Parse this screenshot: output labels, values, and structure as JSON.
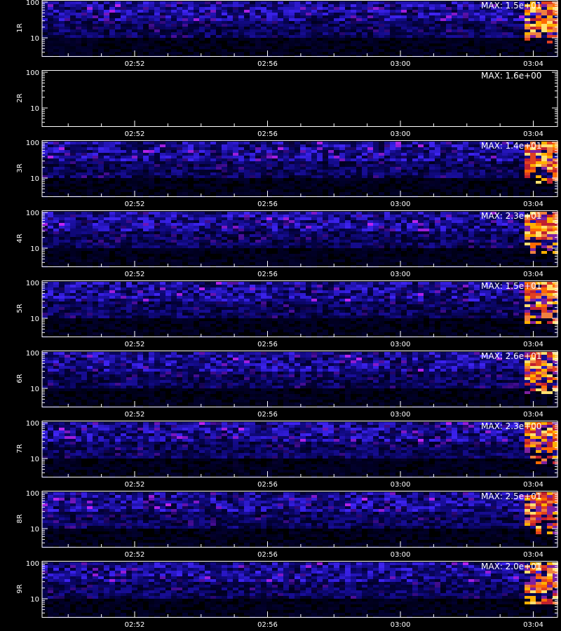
{
  "panels": [
    {
      "label": "1R",
      "max": "MAX: 1.5e+01",
      "yticks": [
        "100",
        "10"
      ],
      "xticks": [
        "02:52",
        "02:56",
        "03:00",
        "03:04"
      ]
    },
    {
      "label": "2R",
      "max": "MAX: 1.6e+00",
      "yticks": [
        "100",
        "10"
      ],
      "xticks": [
        "02:52",
        "02:56",
        "03:00",
        "03:04"
      ]
    },
    {
      "label": "3R",
      "max": "MAX: 1.4e+01",
      "yticks": [
        "100",
        "10"
      ],
      "xticks": [
        "02:52",
        "02:56",
        "03:00",
        "03:04"
      ]
    },
    {
      "label": "4R",
      "max": "MAX: 2.3e+01",
      "yticks": [
        "100",
        "10"
      ],
      "xticks": [
        "02:52",
        "02:56",
        "03:00",
        "03:04"
      ]
    },
    {
      "label": "5R",
      "max": "MAX: 1.5e+01",
      "yticks": [
        "100",
        "10"
      ],
      "xticks": [
        "02:52",
        "02:56",
        "03:00",
        "03:04"
      ]
    },
    {
      "label": "6R",
      "max": "MAX: 2.6e+01",
      "yticks": [
        "100",
        "10"
      ],
      "xticks": [
        "02:52",
        "02:56",
        "03:00",
        "03:04"
      ]
    },
    {
      "label": "7R",
      "max": "MAX: 2.3e+00",
      "yticks": [
        "100",
        "10"
      ],
      "xticks": [
        "02:52",
        "02:56",
        "03:00",
        "03:04"
      ]
    },
    {
      "label": "8R",
      "max": "MAX: 2.5e+01",
      "yticks": [
        "100",
        "10"
      ],
      "xticks": [
        "02:52",
        "02:56",
        "03:00",
        "03:04"
      ]
    },
    {
      "label": "9R",
      "max": "MAX: 2.0e+01",
      "yticks": [
        "100",
        "10"
      ],
      "xticks": [
        "02:52",
        "02:56",
        "03:00",
        "03:04"
      ]
    }
  ]
}
